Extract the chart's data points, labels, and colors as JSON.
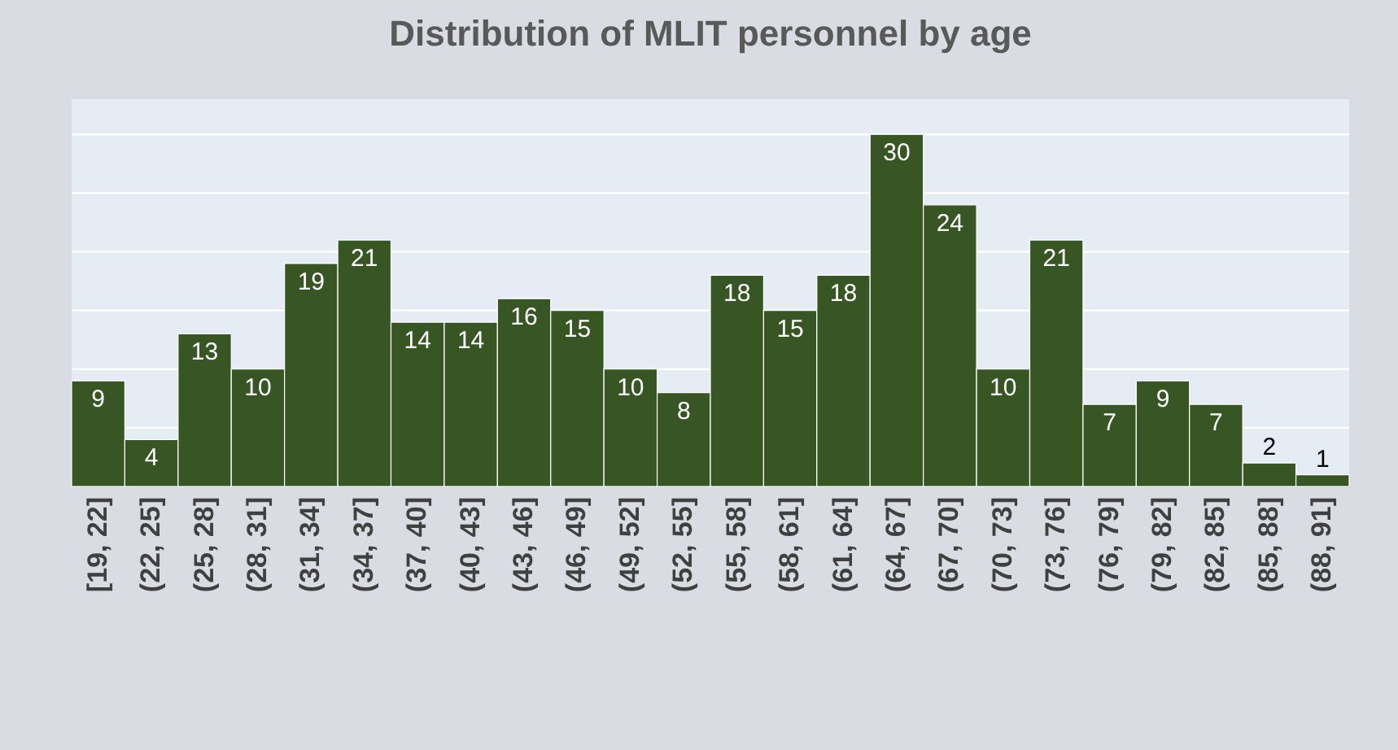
{
  "chart_data": {
    "type": "bar",
    "title": "Distribution of MLIT personnel  by age",
    "categories": [
      "[19, 22]",
      "(22, 25]",
      "(25, 28]",
      "(28, 31]",
      "(31, 34]",
      "(34, 37]",
      "(37, 40]",
      "(40, 43]",
      "(43, 46]",
      "(46, 49]",
      "(49, 52]",
      "(52, 55]",
      "(55, 58]",
      "(58, 61]",
      "(61, 64]",
      "(64, 67]",
      "(67, 70]",
      "(70, 73]",
      "(73, 76]",
      "(76, 79]",
      "(79, 82]",
      "(82, 85]",
      "(85, 88]",
      "(88, 91]"
    ],
    "values": [
      9,
      4,
      13,
      10,
      19,
      21,
      14,
      14,
      16,
      15,
      10,
      8,
      18,
      15,
      18,
      30,
      24,
      10,
      21,
      7,
      9,
      7,
      2,
      1
    ],
    "color": "#375623",
    "ylim": [
      0,
      33
    ],
    "yticks": [
      {
        "value": 0,
        "label": null
      },
      {
        "value": 5,
        "label": null
      },
      {
        "value": 10,
        "label": null
      },
      {
        "value": 15,
        "label": null
      },
      {
        "value": 20,
        "label": null
      },
      {
        "value": 25,
        "label": null
      },
      {
        "value": 30,
        "label": null
      }
    ],
    "grid": "y",
    "tick_labels": "x",
    "data_labels": true
  }
}
